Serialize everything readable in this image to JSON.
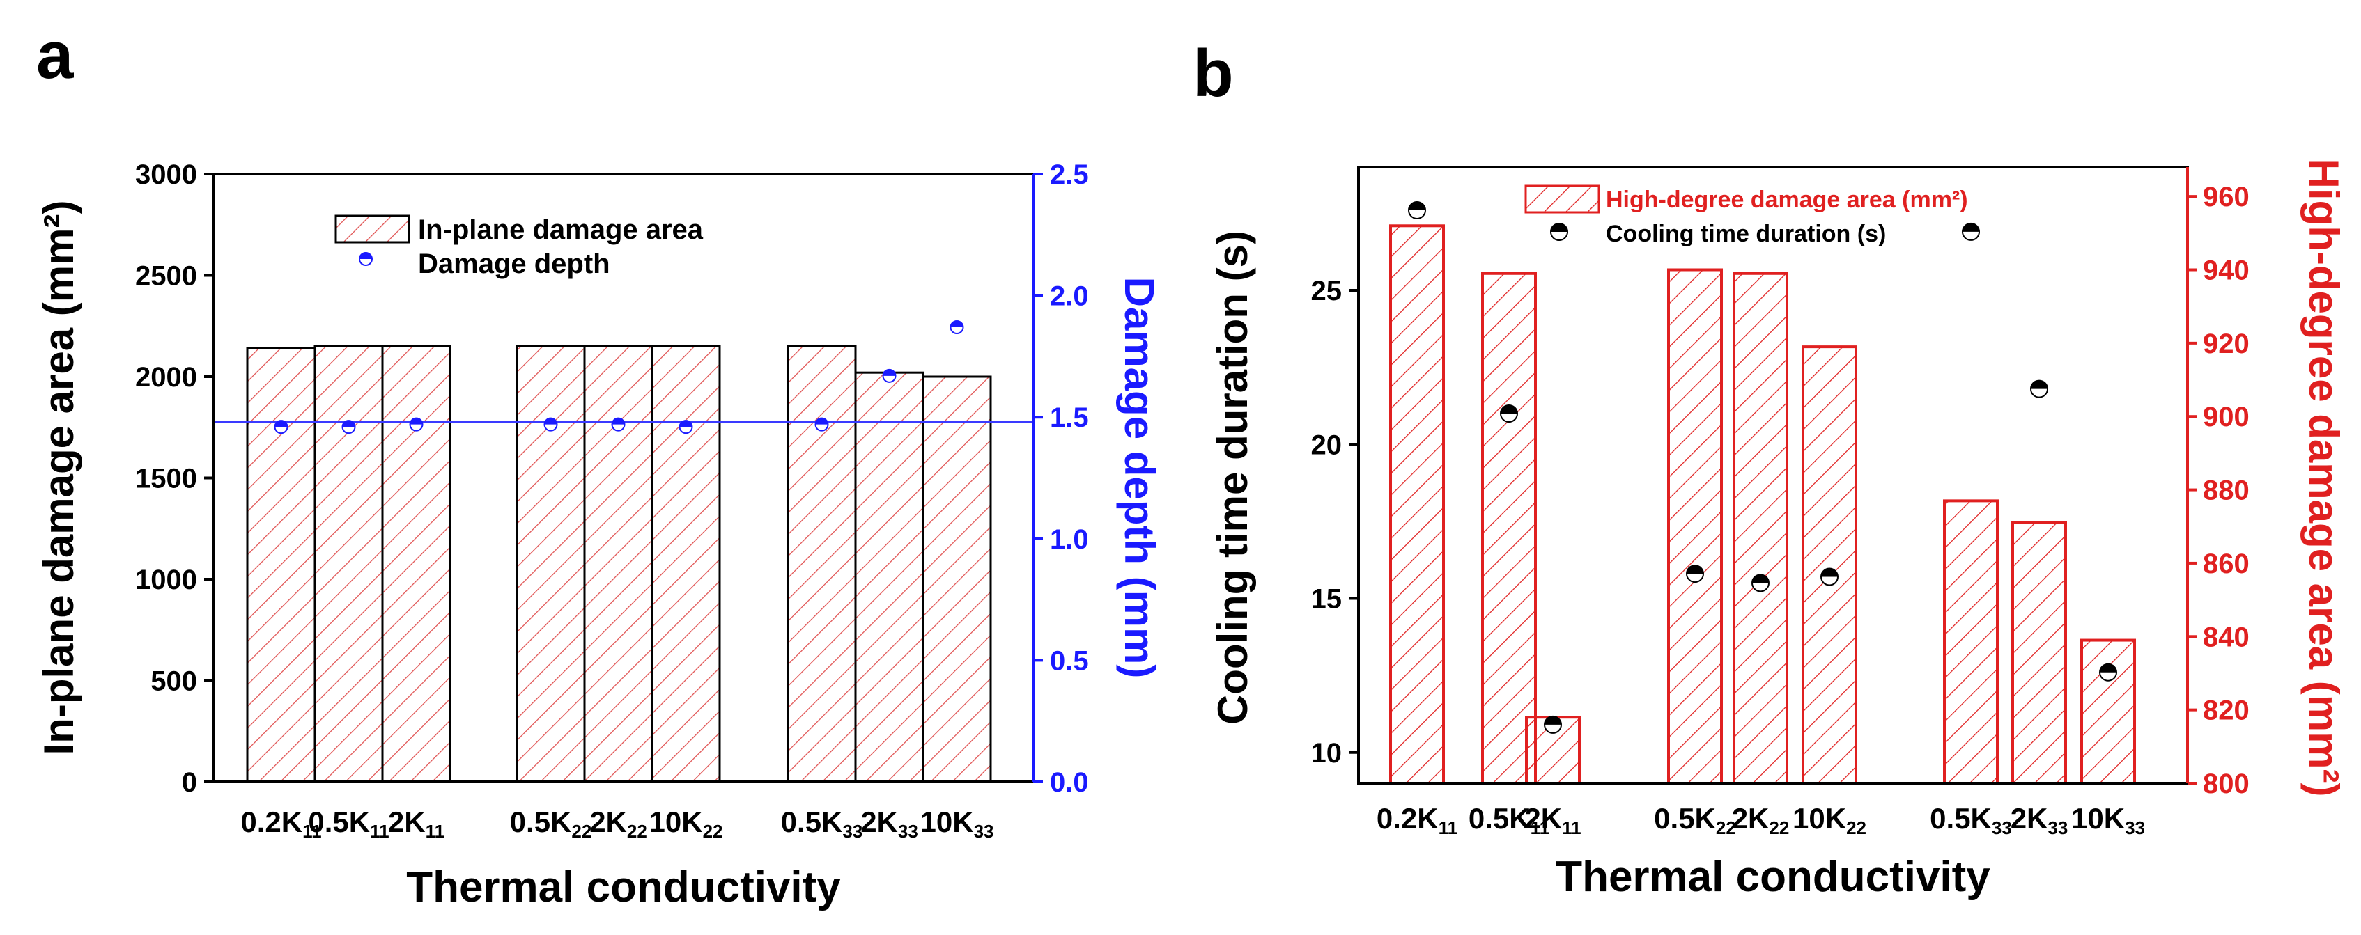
{
  "chart_data": [
    {
      "panel_label": "a",
      "type": "bar",
      "xlabel": "Thermal conductivity",
      "ylabel_left": "In-plane damage area (mm²)",
      "ylabel_right": "Damage depth  (mm)",
      "ylim_left": [
        0,
        3000
      ],
      "ylim_right": [
        0.0,
        2.5
      ],
      "yticks_left": [
        "0",
        "500",
        "1000",
        "1500",
        "2000",
        "2500",
        "3000"
      ],
      "yticks_right": [
        "0.0",
        "0.5",
        "1.0",
        "1.5",
        "2.0",
        "2.5"
      ],
      "categories": [
        {
          "base": "0.2K",
          "sub": "11"
        },
        {
          "base": "0.5K",
          "sub": "11"
        },
        {
          "base": "2K",
          "sub": "11"
        },
        {
          "base": "0.5K",
          "sub": "22"
        },
        {
          "base": "2K",
          "sub": "22"
        },
        {
          "base": "10K",
          "sub": "22"
        },
        {
          "base": "0.5K",
          "sub": "33"
        },
        {
          "base": "2K",
          "sub": "33"
        },
        {
          "base": "10K",
          "sub": "33"
        }
      ],
      "series": [
        {
          "name": "In-plane damage area",
          "axis": "left",
          "kind": "bar",
          "values": [
            2140,
            2150,
            2150,
            2150,
            2150,
            2150,
            2150,
            2020,
            2000
          ]
        },
        {
          "name": "Damage depth",
          "axis": "right",
          "kind": "scatter",
          "values": [
            1.46,
            1.46,
            1.47,
            1.47,
            1.47,
            1.46,
            1.47,
            1.67,
            1.87
          ]
        }
      ],
      "reference_line": {
        "axis": "right",
        "value": 1.48
      },
      "colors": {
        "bar_hatch": "#e05050",
        "depth_marker": "#1a1aff",
        "right_axis": "#1a1aff",
        "ref_line": "#3a3aff"
      }
    },
    {
      "panel_label": "b",
      "type": "bar",
      "xlabel": "Thermal conductivity",
      "ylabel_left": "Cooling time duration (s)",
      "ylabel_right": "High-degree damage area (mm²)",
      "ylim_left": [
        9,
        29
      ],
      "ylim_right": [
        800,
        968
      ],
      "yticks_left": [
        "10",
        "15",
        "20",
        "25"
      ],
      "yticks_right": [
        "800",
        "820",
        "840",
        "860",
        "880",
        "900",
        "920",
        "940",
        "960"
      ],
      "categories": [
        {
          "base": "0.2K",
          "sub": "11"
        },
        {
          "base": "0.5K",
          "sub": "11"
        },
        {
          "base": "2K",
          "sub": "11"
        },
        {
          "base": "0.5K",
          "sub": "22"
        },
        {
          "base": "2K",
          "sub": "22"
        },
        {
          "base": "10K",
          "sub": "22"
        },
        {
          "base": "0.5K",
          "sub": "33"
        },
        {
          "base": "2K",
          "sub": "33"
        },
        {
          "base": "10K",
          "sub": "33"
        }
      ],
      "series": [
        {
          "name": "High-degree damage area (mm²)",
          "axis": "right",
          "kind": "bar",
          "values": [
            952,
            939,
            818,
            940,
            939,
            919,
            877,
            871,
            839
          ]
        },
        {
          "name": "Cooling time duration (s)",
          "axis": "left",
          "kind": "scatter",
          "values": [
            27.6,
            21.0,
            10.9,
            15.8,
            15.5,
            15.7,
            26.9,
            21.8,
            12.6
          ]
        }
      ],
      "colors": {
        "bar_hatch": "#e02020",
        "time_marker": "#000000",
        "right_axis": "#e02020"
      }
    }
  ]
}
